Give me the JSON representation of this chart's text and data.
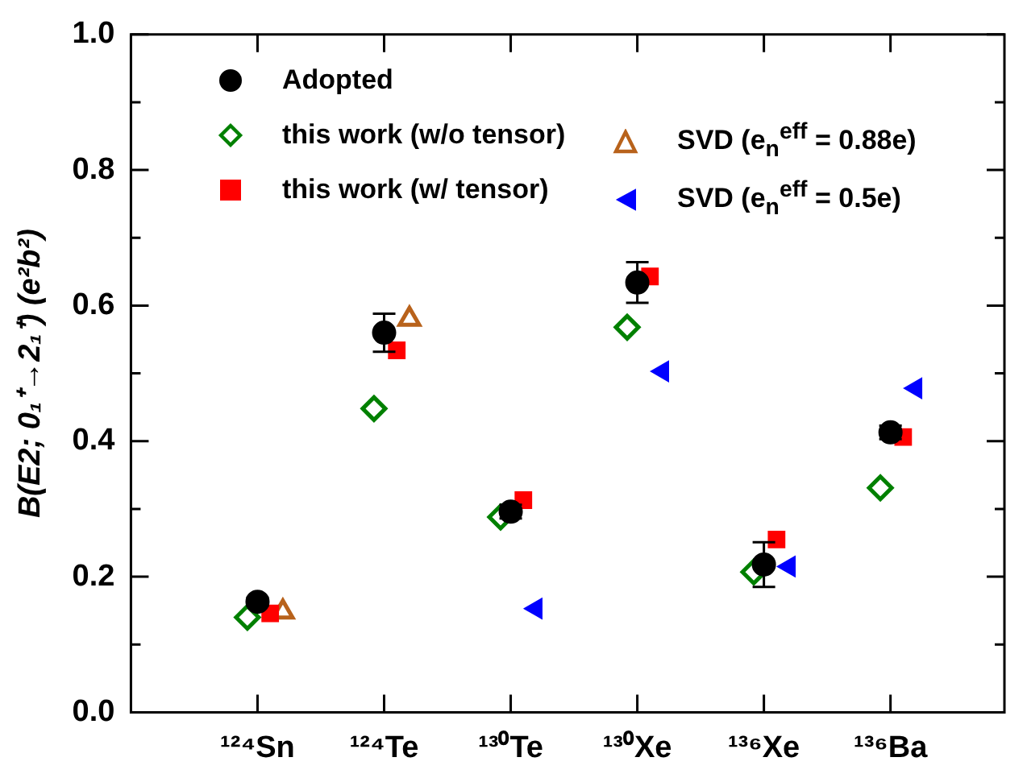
{
  "chart_data": {
    "type": "scatter",
    "ylabel": "B(E2; 0₁⁺→2₁⁺) (e²b²)",
    "categories": [
      "¹²⁴Sn",
      "¹²⁴Te",
      "¹³⁰Te",
      "¹³⁰Xe",
      "¹³⁶Xe",
      "¹³⁶Ba"
    ],
    "ylim": [
      0,
      1
    ],
    "yticks": [
      {
        "value": 0,
        "label": "0.0"
      },
      {
        "value": 0.1,
        "label": null
      },
      {
        "value": 0.2,
        "label": "0.2"
      },
      {
        "value": 0.3,
        "label": null
      },
      {
        "value": 0.4,
        "label": "0.4"
      },
      {
        "value": 0.5,
        "label": null
      },
      {
        "value": 0.6,
        "label": "0.6"
      },
      {
        "value": 0.7,
        "label": null
      },
      {
        "value": 0.8,
        "label": "0.8"
      },
      {
        "value": 0.9,
        "label": null
      },
      {
        "value": 1,
        "label": "1.0"
      }
    ],
    "grid": false,
    "legend": "top",
    "series": [
      {
        "name": "Adopted",
        "color": "#000000",
        "marker": "circle",
        "values": [
          0.163,
          0.56,
          0.296,
          0.634,
          0.218,
          0.413
        ],
        "errors": [
          0.006,
          0.028,
          0.01,
          0.03,
          0.033,
          0.01
        ]
      },
      {
        "name": "this work (w/o tensor)",
        "color": "#008000",
        "marker": "diamond-open",
        "values": [
          0.14,
          0.448,
          0.288,
          0.568,
          0.207,
          0.331
        ]
      },
      {
        "name": "this work (w/ tensor)",
        "color": "#ff0000",
        "marker": "square",
        "values": [
          0.146,
          0.534,
          0.313,
          0.643,
          0.255,
          0.406
        ]
      },
      {
        "name": "SVD (e$_{n}$$^{eff}$ = 0.88e)",
        "color": "#b8621b",
        "marker": "triangle-open",
        "values": [
          0.148,
          0.58,
          null,
          null,
          null,
          null
        ]
      },
      {
        "name": "SVD (e$_{n}$$^{eff}$ = 0.5e)",
        "color": "#0000ff",
        "marker": "triangle-left",
        "values": [
          null,
          null,
          0.153,
          0.503,
          0.215,
          0.478
        ]
      }
    ]
  }
}
